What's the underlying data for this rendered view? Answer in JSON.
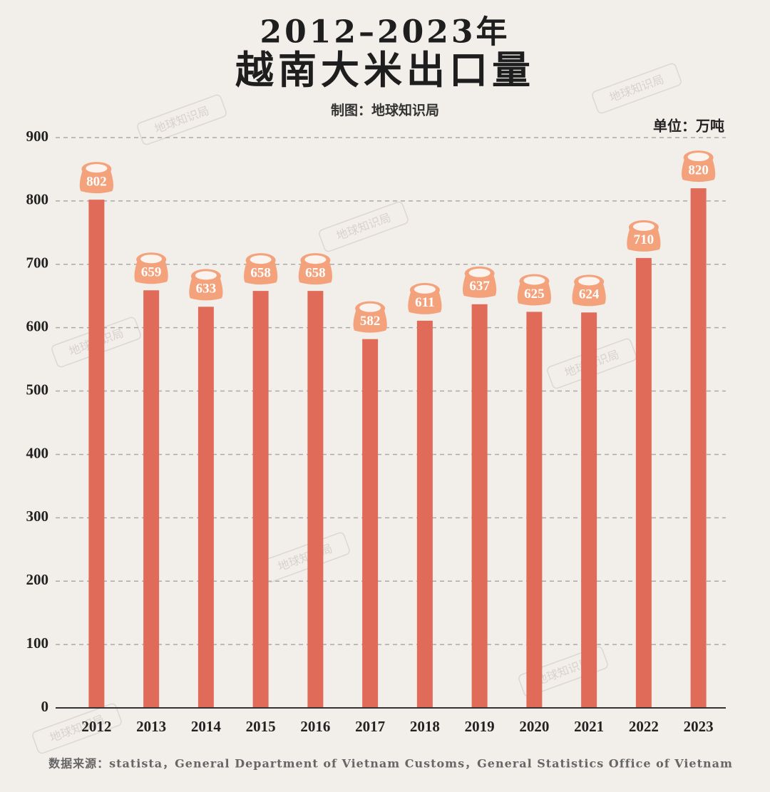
{
  "chart_data": {
    "type": "bar",
    "title": "2012–2023年",
    "subtitle": "越南大米出口量",
    "credit": "制图：地球知识局",
    "unit": "单位：万吨",
    "source": "数据来源：statista，General Department of Vietnam Customs，General Statistics Office of Vietnam",
    "watermark": "地球知识局",
    "categories": [
      "2012",
      "2013",
      "2014",
      "2015",
      "2016",
      "2017",
      "2018",
      "2019",
      "2020",
      "2021",
      "2022",
      "2023"
    ],
    "values": [
      802,
      659,
      633,
      658,
      658,
      582,
      611,
      637,
      625,
      624,
      710,
      820
    ],
    "color": "#e06b58",
    "label_color": "#f4a27c",
    "ylim": [
      0,
      900
    ],
    "yticks": [
      0,
      100,
      200,
      300,
      400,
      500,
      600,
      700,
      800,
      900
    ],
    "grid": true
  }
}
